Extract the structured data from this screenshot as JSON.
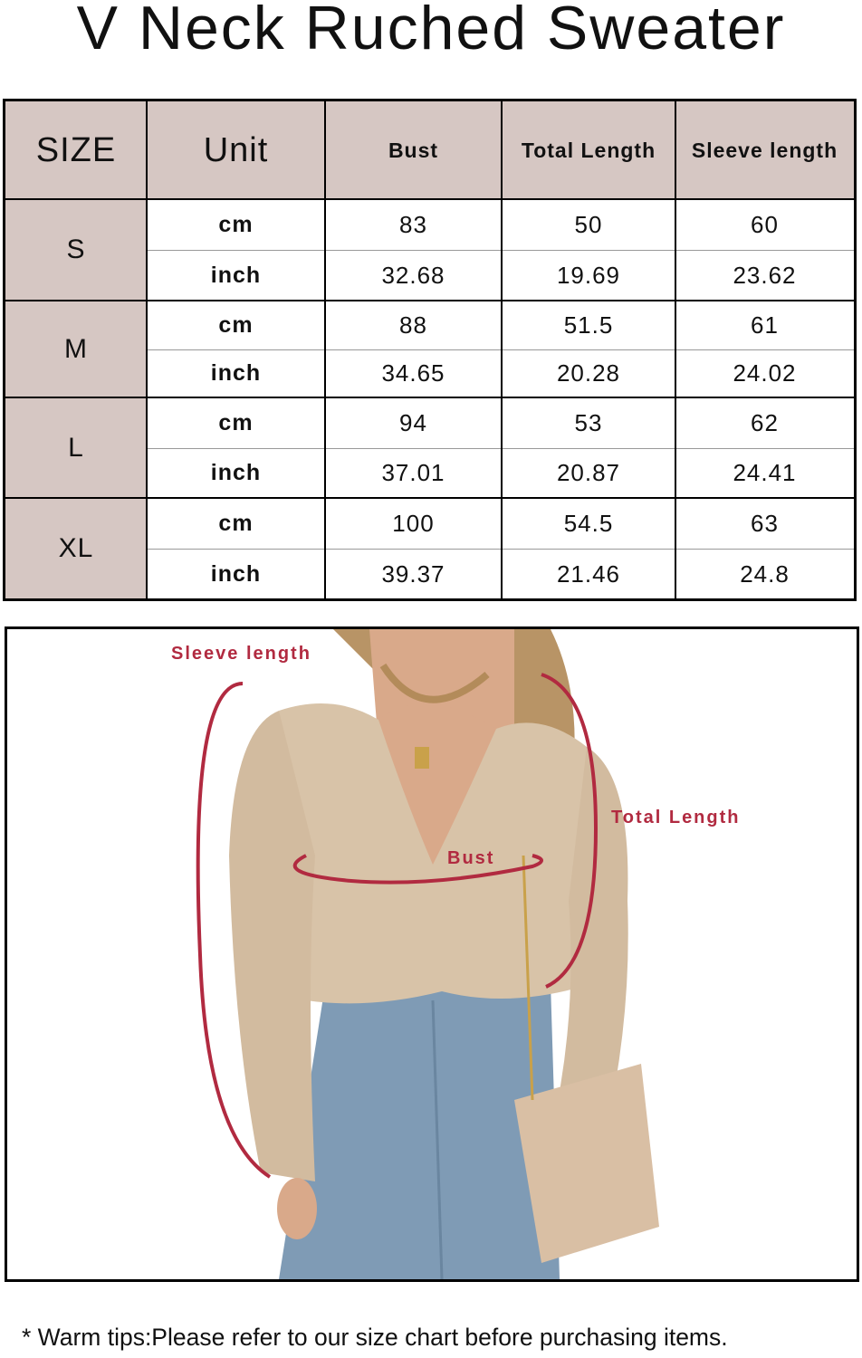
{
  "title": "V Neck Ruched Sweater",
  "colors": {
    "header_bg": "#d6c7c3",
    "annotation_red": "#b12a40"
  },
  "table": {
    "headers": [
      "SIZE",
      "Unit",
      "Bust",
      "Total Length",
      "Sleeve length"
    ],
    "rows": [
      {
        "size": "S",
        "cm": [
          "83",
          "50",
          "60"
        ],
        "inch": [
          "32.68",
          "19.69",
          "23.62"
        ]
      },
      {
        "size": "M",
        "cm": [
          "88",
          "51.5",
          "61"
        ],
        "inch": [
          "34.65",
          "20.28",
          "24.02"
        ]
      },
      {
        "size": "L",
        "cm": [
          "94",
          "53",
          "62"
        ],
        "inch": [
          "37.01",
          "20.87",
          "24.41"
        ]
      },
      {
        "size": "XL",
        "cm": [
          "100",
          "54.5",
          "63"
        ],
        "inch": [
          "39.37",
          "21.46",
          "24.8"
        ]
      }
    ],
    "unit_labels": {
      "cm": "cm",
      "inch": "inch"
    }
  },
  "photo": {
    "labels": {
      "sleeve": "Sleeve length",
      "total": "Total Length",
      "bust": "Bust"
    }
  },
  "tip": "* Warm tips:Please refer to our size chart before purchasing items."
}
